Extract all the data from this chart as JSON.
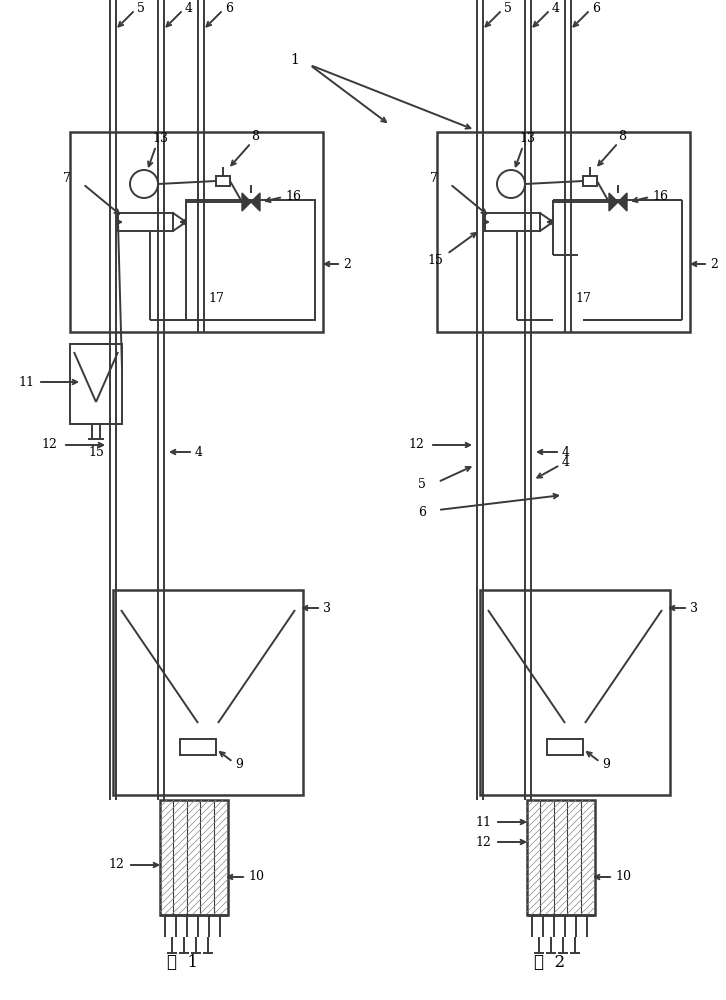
{
  "fig_width": 7.26,
  "fig_height": 10.0,
  "bg_color": "#ffffff",
  "line_color": "#3a3a3a",
  "fig1_label": "图  1",
  "fig2_label": "图  2"
}
